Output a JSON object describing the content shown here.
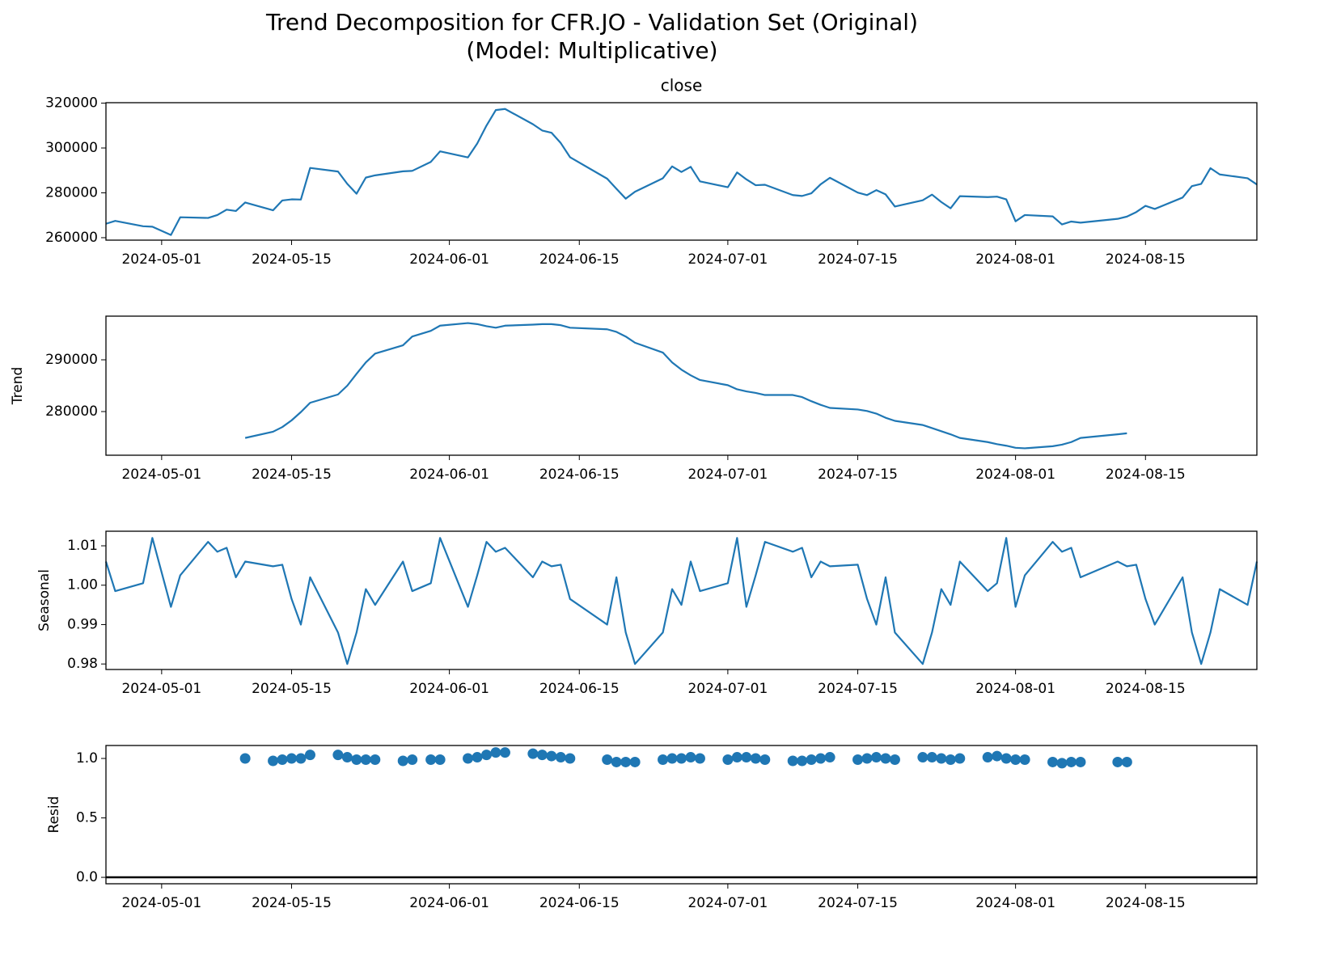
{
  "title": "Trend Decomposition for CFR.JO - Validation Set (Original)",
  "subtitle": "(Model: Multiplicative)",
  "chart_data": [
    {
      "type": "line",
      "title": "close",
      "color": "#1f77b4",
      "x": [
        "2024-04-25",
        "2024-04-26",
        "2024-04-29",
        "2024-04-30",
        "2024-05-02",
        "2024-05-03",
        "2024-05-06",
        "2024-05-07",
        "2024-05-08",
        "2024-05-09",
        "2024-05-10",
        "2024-05-13",
        "2024-05-14",
        "2024-05-15",
        "2024-05-16",
        "2024-05-17",
        "2024-05-20",
        "2024-05-21",
        "2024-05-22",
        "2024-05-23",
        "2024-05-24",
        "2024-05-27",
        "2024-05-28",
        "2024-05-30",
        "2024-05-31",
        "2024-06-03",
        "2024-06-04",
        "2024-06-05",
        "2024-06-06",
        "2024-06-07",
        "2024-06-10",
        "2024-06-11",
        "2024-06-12",
        "2024-06-13",
        "2024-06-14",
        "2024-06-18",
        "2024-06-19",
        "2024-06-20",
        "2024-06-21",
        "2024-06-24",
        "2024-06-25",
        "2024-06-26",
        "2024-06-27",
        "2024-06-28",
        "2024-07-01",
        "2024-07-02",
        "2024-07-03",
        "2024-07-04",
        "2024-07-05",
        "2024-07-08",
        "2024-07-09",
        "2024-07-10",
        "2024-07-11",
        "2024-07-12",
        "2024-07-15",
        "2024-07-16",
        "2024-07-17",
        "2024-07-18",
        "2024-07-19",
        "2024-07-22",
        "2024-07-23",
        "2024-07-24",
        "2024-07-25",
        "2024-07-26",
        "2024-07-29",
        "2024-07-30",
        "2024-07-31",
        "2024-08-01",
        "2024-08-02",
        "2024-08-05",
        "2024-08-06",
        "2024-08-07",
        "2024-08-08",
        "2024-08-12",
        "2024-08-13",
        "2024-08-14",
        "2024-08-15",
        "2024-08-16",
        "2024-08-19",
        "2024-08-20",
        "2024-08-21",
        "2024-08-22",
        "2024-08-23",
        "2024-08-26",
        "2024-08-27"
      ],
      "values": [
        266200,
        267500,
        265100,
        264900,
        261200,
        269100,
        268800,
        270100,
        272500,
        271900,
        275700,
        272200,
        276600,
        277100,
        277000,
        291100,
        289500,
        284000,
        279600,
        286800,
        287800,
        289600,
        289800,
        293800,
        298500,
        295800,
        302000,
        310000,
        316900,
        317400,
        310600,
        307800,
        306800,
        302200,
        295900,
        286300,
        281800,
        277400,
        280500,
        286500,
        291800,
        289300,
        291600,
        285100,
        282500,
        289100,
        286000,
        283400,
        283600,
        279000,
        278600,
        279800,
        283800,
        286700,
        280100,
        279000,
        281200,
        279300,
        273900,
        276700,
        279200,
        275900,
        273100,
        278500,
        278100,
        278300,
        277100,
        267300,
        270100,
        269500,
        265900,
        267200,
        266700,
        268400,
        269400,
        271400,
        274200,
        272800,
        277900,
        283000,
        284000,
        291000,
        288200,
        286500,
        283700
      ],
      "xlim": [
        "2024-04-25",
        "2024-08-27"
      ],
      "xticks": [
        "2024-05-01",
        "2024-05-15",
        "2024-06-01",
        "2024-06-15",
        "2024-07-01",
        "2024-07-15",
        "2024-08-01",
        "2024-08-15"
      ],
      "ylim": [
        258900,
        320200
      ],
      "yticks": [
        260000,
        280000,
        300000,
        320000
      ]
    },
    {
      "type": "line",
      "ylabel": "Trend",
      "color": "#1f77b4",
      "x": [
        "2024-04-25",
        "2024-04-26",
        "2024-04-29",
        "2024-04-30",
        "2024-05-02",
        "2024-05-03",
        "2024-05-06",
        "2024-05-07",
        "2024-05-08",
        "2024-05-09",
        "2024-05-10",
        "2024-05-13",
        "2024-05-14",
        "2024-05-15",
        "2024-05-16",
        "2024-05-17",
        "2024-05-20",
        "2024-05-21",
        "2024-05-22",
        "2024-05-23",
        "2024-05-24",
        "2024-05-27",
        "2024-05-28",
        "2024-05-30",
        "2024-05-31",
        "2024-06-03",
        "2024-06-04",
        "2024-06-05",
        "2024-06-06",
        "2024-06-07",
        "2024-06-10",
        "2024-06-11",
        "2024-06-12",
        "2024-06-13",
        "2024-06-14",
        "2024-06-18",
        "2024-06-19",
        "2024-06-20",
        "2024-06-21",
        "2024-06-24",
        "2024-06-25",
        "2024-06-26",
        "2024-06-27",
        "2024-06-28",
        "2024-07-01",
        "2024-07-02",
        "2024-07-03",
        "2024-07-04",
        "2024-07-05",
        "2024-07-08",
        "2024-07-09",
        "2024-07-10",
        "2024-07-11",
        "2024-07-12",
        "2024-07-15",
        "2024-07-16",
        "2024-07-17",
        "2024-07-18",
        "2024-07-19",
        "2024-07-22",
        "2024-07-23",
        "2024-07-24",
        "2024-07-25",
        "2024-07-26",
        "2024-07-29",
        "2024-07-30",
        "2024-07-31",
        "2024-08-01",
        "2024-08-02",
        "2024-08-05",
        "2024-08-06",
        "2024-08-07",
        "2024-08-08",
        "2024-08-12",
        "2024-08-13",
        "2024-08-14",
        "2024-08-15",
        "2024-08-16",
        "2024-08-19",
        "2024-08-20",
        "2024-08-21",
        "2024-08-22",
        "2024-08-23",
        "2024-08-26",
        "2024-08-27"
      ],
      "values": [
        null,
        null,
        null,
        null,
        null,
        null,
        null,
        null,
        null,
        null,
        274900,
        276100,
        277000,
        278300,
        279900,
        281700,
        283300,
        285000,
        287300,
        289500,
        291200,
        292800,
        294500,
        295600,
        296600,
        297100,
        296900,
        296500,
        296200,
        296600,
        296800,
        296900,
        296900,
        296700,
        296200,
        295900,
        295400,
        294500,
        293300,
        291400,
        289500,
        288100,
        287000,
        286100,
        285100,
        284300,
        283900,
        283600,
        283200,
        283200,
        282800,
        282000,
        281300,
        280700,
        280400,
        280100,
        279600,
        278800,
        278200,
        277400,
        276800,
        276200,
        275600,
        274900,
        274100,
        273700,
        273400,
        273000,
        272900,
        273300,
        273600,
        274100,
        274900,
        275600,
        275800,
        null,
        null,
        null,
        null,
        null,
        null,
        null,
        null,
        null,
        null
      ],
      "xlim": [
        "2024-04-25",
        "2024-08-27"
      ],
      "xticks": [
        "2024-05-01",
        "2024-05-15",
        "2024-06-01",
        "2024-06-15",
        "2024-07-01",
        "2024-07-15",
        "2024-08-01",
        "2024-08-15"
      ],
      "ylim": [
        271560,
        298440
      ],
      "yticks": [
        280000,
        290000
      ]
    },
    {
      "type": "line",
      "ylabel": "Seasonal",
      "color": "#1f77b4",
      "x": [
        "2024-04-25",
        "2024-04-26",
        "2024-04-29",
        "2024-04-30",
        "2024-05-02",
        "2024-05-03",
        "2024-05-06",
        "2024-05-07",
        "2024-05-08",
        "2024-05-09",
        "2024-05-10",
        "2024-05-13",
        "2024-05-14",
        "2024-05-15",
        "2024-05-16",
        "2024-05-17",
        "2024-05-20",
        "2024-05-21",
        "2024-05-22",
        "2024-05-23",
        "2024-05-24",
        "2024-05-27",
        "2024-05-28",
        "2024-05-30",
        "2024-05-31",
        "2024-06-03",
        "2024-06-04",
        "2024-06-05",
        "2024-06-06",
        "2024-06-07",
        "2024-06-10",
        "2024-06-11",
        "2024-06-12",
        "2024-06-13",
        "2024-06-14",
        "2024-06-18",
        "2024-06-19",
        "2024-06-20",
        "2024-06-21",
        "2024-06-24",
        "2024-06-25",
        "2024-06-26",
        "2024-06-27",
        "2024-06-28",
        "2024-07-01",
        "2024-07-02",
        "2024-07-03",
        "2024-07-04",
        "2024-07-05",
        "2024-07-08",
        "2024-07-09",
        "2024-07-10",
        "2024-07-11",
        "2024-07-12",
        "2024-07-15",
        "2024-07-16",
        "2024-07-17",
        "2024-07-18",
        "2024-07-19",
        "2024-07-22",
        "2024-07-23",
        "2024-07-24",
        "2024-07-25",
        "2024-07-26",
        "2024-07-29",
        "2024-07-30",
        "2024-07-31",
        "2024-08-01",
        "2024-08-02",
        "2024-08-05",
        "2024-08-06",
        "2024-08-07",
        "2024-08-08",
        "2024-08-12",
        "2024-08-13",
        "2024-08-14",
        "2024-08-15",
        "2024-08-16",
        "2024-08-19",
        "2024-08-20",
        "2024-08-21",
        "2024-08-22",
        "2024-08-23",
        "2024-08-26",
        "2024-08-27"
      ],
      "values": [
        1.006,
        0.9985,
        1.0005,
        1.012,
        0.9945,
        1.0025,
        1.011,
        1.0085,
        1.0095,
        1.002,
        1.006,
        1.0048,
        1.0052,
        0.9965,
        0.99,
        1.002,
        0.988,
        0.98,
        0.988,
        0.999,
        0.995,
        1.006,
        0.9985,
        1.0005,
        1.012,
        0.9945,
        1.0025,
        1.011,
        1.0085,
        1.0095,
        1.002,
        1.006,
        1.0048,
        1.0052,
        0.9965,
        0.99,
        1.002,
        0.988,
        0.98,
        0.988,
        0.999,
        0.995,
        1.006,
        0.9985,
        1.0005,
        1.012,
        0.9945,
        1.0025,
        1.011,
        1.0085,
        1.0095,
        1.002,
        1.006,
        1.0048,
        1.0052,
        0.9965,
        0.99,
        1.002,
        0.988,
        0.98,
        0.988,
        0.999,
        0.995,
        1.006,
        0.9985,
        1.0005,
        1.012,
        0.9945,
        1.0025,
        1.011,
        1.0085,
        1.0095,
        1.002,
        1.006,
        1.0048,
        1.0052,
        0.9965,
        0.99,
        1.002,
        0.988,
        0.98,
        0.988,
        0.999,
        0.995,
        1.006
      ],
      "xlim": [
        "2024-04-25",
        "2024-08-27"
      ],
      "xticks": [
        "2024-05-01",
        "2024-05-15",
        "2024-06-01",
        "2024-06-15",
        "2024-07-01",
        "2024-07-15",
        "2024-08-01",
        "2024-08-15"
      ],
      "ylim": [
        0.9786,
        1.0137
      ],
      "yticks": [
        0.98,
        0.99,
        {
          "value": 1,
          "label": "1.00"
        },
        1.01
      ]
    },
    {
      "type": "scatter",
      "ylabel": "Resid",
      "color": "#1f77b4",
      "baseline": 0,
      "x": [
        "2024-04-25",
        "2024-04-26",
        "2024-04-29",
        "2024-04-30",
        "2024-05-02",
        "2024-05-03",
        "2024-05-06",
        "2024-05-07",
        "2024-05-08",
        "2024-05-09",
        "2024-05-10",
        "2024-05-13",
        "2024-05-14",
        "2024-05-15",
        "2024-05-16",
        "2024-05-17",
        "2024-05-20",
        "2024-05-21",
        "2024-05-22",
        "2024-05-23",
        "2024-05-24",
        "2024-05-27",
        "2024-05-28",
        "2024-05-30",
        "2024-05-31",
        "2024-06-03",
        "2024-06-04",
        "2024-06-05",
        "2024-06-06",
        "2024-06-07",
        "2024-06-10",
        "2024-06-11",
        "2024-06-12",
        "2024-06-13",
        "2024-06-14",
        "2024-06-18",
        "2024-06-19",
        "2024-06-20",
        "2024-06-21",
        "2024-06-24",
        "2024-06-25",
        "2024-06-26",
        "2024-06-27",
        "2024-06-28",
        "2024-07-01",
        "2024-07-02",
        "2024-07-03",
        "2024-07-04",
        "2024-07-05",
        "2024-07-08",
        "2024-07-09",
        "2024-07-10",
        "2024-07-11",
        "2024-07-12",
        "2024-07-15",
        "2024-07-16",
        "2024-07-17",
        "2024-07-18",
        "2024-07-19",
        "2024-07-22",
        "2024-07-23",
        "2024-07-24",
        "2024-07-25",
        "2024-07-26",
        "2024-07-29",
        "2024-07-30",
        "2024-07-31",
        "2024-08-01",
        "2024-08-02",
        "2024-08-05",
        "2024-08-06",
        "2024-08-07",
        "2024-08-08",
        "2024-08-12",
        "2024-08-13",
        "2024-08-14",
        "2024-08-15",
        "2024-08-16",
        "2024-08-19",
        "2024-08-20",
        "2024-08-21",
        "2024-08-22",
        "2024-08-23",
        "2024-08-26",
        "2024-08-27"
      ],
      "values": [
        null,
        null,
        null,
        null,
        null,
        null,
        null,
        null,
        null,
        null,
        1.0,
        0.98,
        0.99,
        1.0,
        1.0,
        1.03,
        1.03,
        1.01,
        0.99,
        0.99,
        0.99,
        0.98,
        0.99,
        0.99,
        0.99,
        1.0,
        1.01,
        1.03,
        1.05,
        1.05,
        1.04,
        1.03,
        1.02,
        1.01,
        1.0,
        0.99,
        0.97,
        0.97,
        0.97,
        0.99,
        1.0,
        1.0,
        1.01,
        1.0,
        0.99,
        1.01,
        1.01,
        1.0,
        0.99,
        0.98,
        0.98,
        0.99,
        1.0,
        1.01,
        0.99,
        1.0,
        1.01,
        1.0,
        0.99,
        1.01,
        1.01,
        1.0,
        0.99,
        1.0,
        1.01,
        1.02,
        1.0,
        0.99,
        0.99,
        0.97,
        0.96,
        0.97,
        0.97,
        0.97,
        0.97,
        null,
        null,
        null,
        null,
        null,
        null,
        null,
        null,
        null,
        null
      ],
      "xlim": [
        "2024-04-25",
        "2024-08-27"
      ],
      "xticks": [
        "2024-05-01",
        "2024-05-15",
        "2024-06-01",
        "2024-06-15",
        "2024-07-01",
        "2024-07-15",
        "2024-08-01",
        "2024-08-15"
      ],
      "ylim": [
        -0.054,
        1.109
      ],
      "yticks": [
        {
          "value": 0,
          "label": "0.0"
        },
        0.5,
        {
          "value": 1,
          "label": "1.0"
        }
      ]
    }
  ]
}
